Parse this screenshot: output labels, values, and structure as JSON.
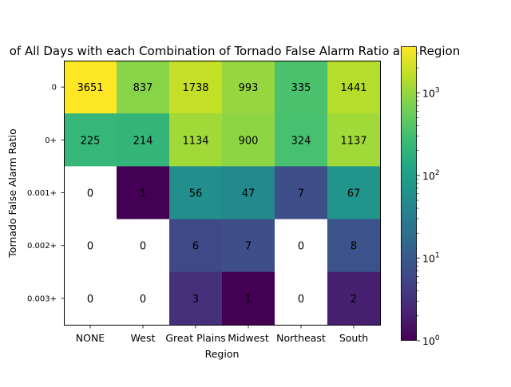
{
  "chart_data": {
    "type": "heatmap",
    "title": "of All Days with each Combination of Tornado False Alarm Ratio and Region",
    "xlabel": "Region",
    "ylabel": "Tornado False Alarm Ratio",
    "x_categories": [
      "NONE",
      "West",
      "Great Plains",
      "Midwest",
      "Northeast",
      "South"
    ],
    "y_categories": [
      "0",
      "0+",
      "0.001+",
      "0.002+",
      "0.003+"
    ],
    "values": [
      [
        3651,
        837,
        1738,
        993,
        335,
        1441
      ],
      [
        225,
        214,
        1134,
        900,
        324,
        1137
      ],
      [
        0,
        1,
        56,
        47,
        7,
        67
      ],
      [
        0,
        0,
        6,
        7,
        0,
        8
      ],
      [
        0,
        0,
        3,
        1,
        0,
        2
      ]
    ],
    "color_scale": "viridis",
    "scale": "log",
    "zero_color": "#ffffff",
    "colorbar": {
      "range": [
        1,
        3651
      ],
      "ticks": [
        {
          "value": 1,
          "base": "10",
          "exp": "0"
        },
        {
          "value": 10,
          "base": "10",
          "exp": "1"
        },
        {
          "value": 100,
          "base": "10",
          "exp": "2"
        },
        {
          "value": 1000,
          "base": "10",
          "exp": "3"
        }
      ]
    }
  }
}
